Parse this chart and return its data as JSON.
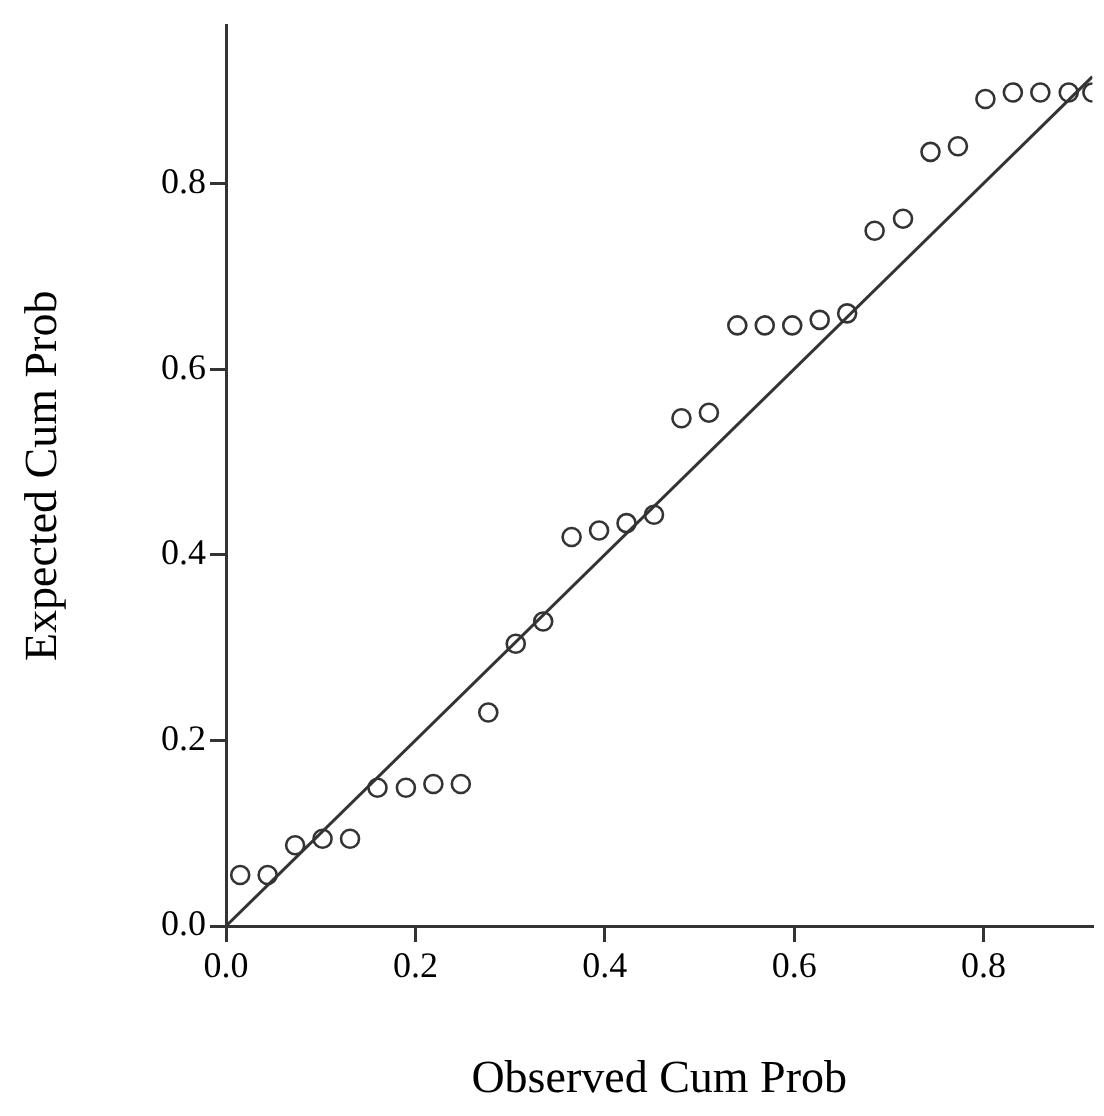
{
  "chart_data": {
    "type": "scatter",
    "xlabel": "Observed Cum Prob",
    "ylabel": "Expected Cum Prob",
    "marker": "circle",
    "grid": false,
    "legend": false,
    "xlim": [
      0,
      0.915
    ],
    "ylim": [
      0,
      0.97
    ],
    "xticks": [
      {
        "value": 0,
        "label": "0.0"
      },
      {
        "value": 0.2,
        "label": "0.2"
      },
      {
        "value": 0.4,
        "label": "0.4"
      },
      {
        "value": 0.6,
        "label": "0.6"
      },
      {
        "value": 0.8,
        "label": "0.8"
      }
    ],
    "yticks": [
      {
        "value": 0,
        "label": "0.0"
      },
      {
        "value": 0.2,
        "label": "0.2"
      },
      {
        "value": 0.4,
        "label": "0.4"
      },
      {
        "value": 0.6,
        "label": "0.6"
      },
      {
        "value": 0.8,
        "label": "0.8"
      }
    ],
    "series": [
      {
        "color": "#333333",
        "x": [
          0.015,
          0.044,
          0.073,
          0.102,
          0.131,
          0.16,
          0.19,
          0.219,
          0.248,
          0.277,
          0.306,
          0.335,
          0.365,
          0.394,
          0.423,
          0.452,
          0.481,
          0.51,
          0.54,
          0.569,
          0.598,
          0.627,
          0.656,
          0.685,
          0.715,
          0.744,
          0.773,
          0.802,
          0.831,
          0.86,
          0.89,
          0.915
        ],
        "values": [
          0.055,
          0.055,
          0.087,
          0.094,
          0.094,
          0.149,
          0.149,
          0.153,
          0.153,
          0.23,
          0.304,
          0.328,
          0.419,
          0.426,
          0.434,
          0.443,
          0.547,
          0.553,
          0.647,
          0.647,
          0.647,
          0.653,
          0.66,
          0.749,
          0.762,
          0.834,
          0.84,
          0.891,
          0.898,
          0.898,
          0.898,
          0.898
        ]
      },
      {
        "type": "line",
        "marker": "none",
        "color": "#333333",
        "x": [
          0,
          0.915
        ],
        "values": [
          0,
          0.915
        ]
      }
    ]
  }
}
